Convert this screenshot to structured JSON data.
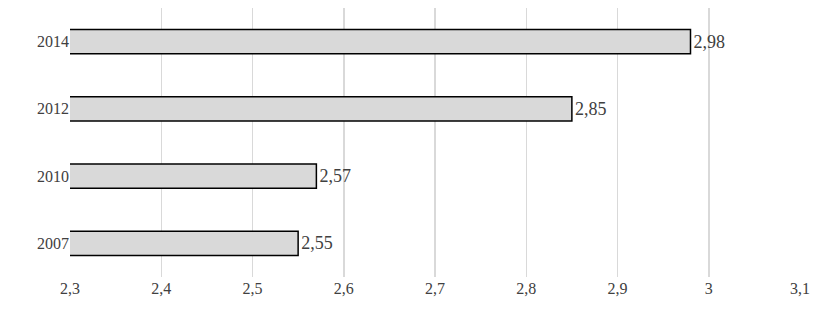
{
  "chart_data": {
    "type": "bar",
    "orientation": "horizontal",
    "categories": [
      "2007",
      "2010",
      "2012",
      "2014"
    ],
    "values": [
      2.55,
      2.57,
      2.85,
      2.98
    ],
    "value_labels": [
      "2,55",
      "2,57",
      "2,85",
      "2,98"
    ],
    "data_labels": true,
    "color": "#d9d9d9",
    "xlim": [
      2.3,
      3.1
    ],
    "xticks": [
      {
        "value": 2.3,
        "label": "2,3"
      },
      {
        "value": 2.4,
        "label": "2,4"
      },
      {
        "value": 2.5,
        "label": "2,5"
      },
      {
        "value": 2.6,
        "label": "2,6"
      },
      {
        "value": 2.7,
        "label": "2,7"
      },
      {
        "value": 2.8,
        "label": "2,8"
      },
      {
        "value": 2.9,
        "label": "2,9"
      },
      3,
      {
        "value": 3.1,
        "label": "3,1"
      }
    ],
    "grid": true
  }
}
